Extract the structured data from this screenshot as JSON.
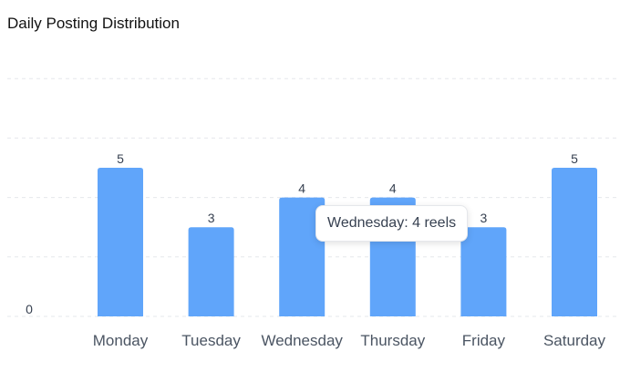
{
  "title": "Daily Posting Distribution",
  "tooltip": {
    "text": "Wednesday: 4 reels"
  },
  "chart_data": {
    "type": "bar",
    "title": "Daily Posting Distribution",
    "categories": [
      "Monday",
      "Tuesday",
      "Wednesday",
      "Thursday",
      "Friday",
      "Saturday"
    ],
    "values": [
      5,
      3,
      4,
      4,
      3,
      5
    ],
    "ylim": [
      0,
      8
    ],
    "y_tick_labels": [
      "0"
    ],
    "bar_color": "#60a5fa",
    "grid": true,
    "data_labels": true
  }
}
